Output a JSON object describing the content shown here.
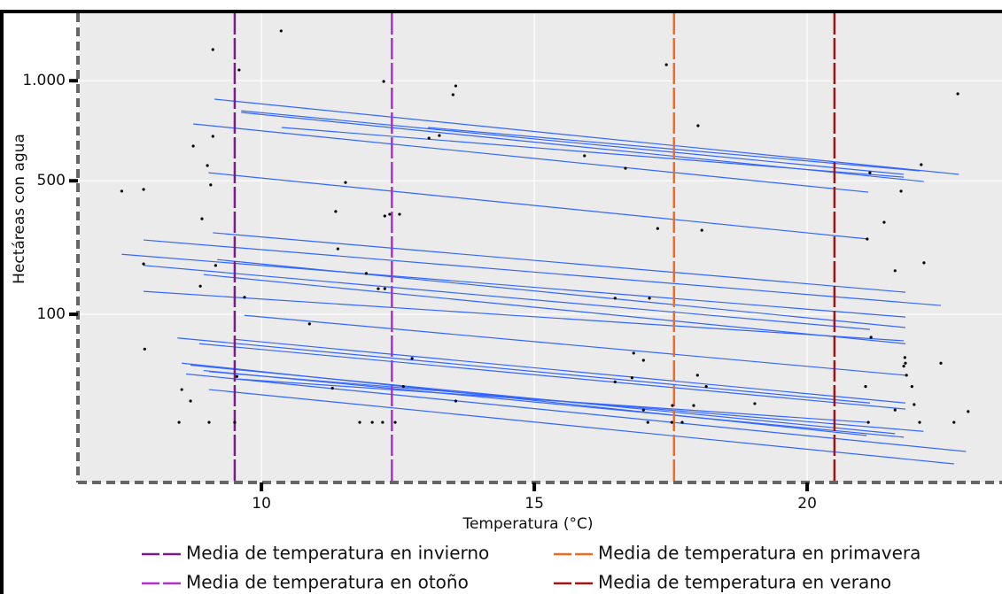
{
  "chart_data": {
    "type": "scatter",
    "xlabel": "Temperatura (°C)",
    "ylabel": "Hectáreas con agua",
    "yscale": "sqrt",
    "grid": true,
    "legend": "bottom",
    "xlim": [
      6.67,
      23.57
    ],
    "xticks": [
      10,
      15,
      20
    ],
    "ylim": [
      -31,
      1434
    ],
    "yticks": [
      100,
      500,
      {
        "value": 1000,
        "label": "1.000"
      }
    ],
    "points": {
      "color": "#000000",
      "x": [
        7.44,
        7.84,
        7.84,
        7.86,
        8.49,
        8.54,
        8.7,
        8.75,
        8.88,
        8.91,
        9.01,
        9.04,
        9.07,
        9.11,
        9.11,
        9.16,
        9.51,
        9.55,
        9.59,
        9.69,
        10.36,
        10.88,
        11.3,
        11.36,
        11.4,
        11.54,
        11.8,
        11.92,
        12.03,
        12.14,
        12.22,
        12.24,
        12.26,
        12.26,
        12.35,
        12.45,
        12.53,
        12.6,
        12.76,
        13.07,
        13.26,
        13.51,
        13.56,
        13.56,
        15.92,
        16.48,
        16.48,
        16.67,
        16.79,
        16.82,
        17.0,
        17.0,
        17.08,
        17.11,
        17.26,
        17.42,
        17.52,
        17.53,
        17.71,
        17.92,
        17.99,
        18.0,
        18.07,
        18.15,
        19.04,
        21.07,
        21.1,
        21.12,
        21.15,
        21.17,
        21.41,
        21.61,
        21.61,
        21.72,
        21.77,
        21.79,
        21.8,
        21.82,
        21.92,
        21.96,
        22.06,
        22.09,
        22.14,
        22.45,
        22.69,
        22.76,
        22.95
      ],
      "values": [
        458,
        465,
        215,
        46,
        0,
        9.2,
        3.9,
        654,
        159,
        355,
        565,
        0,
        483,
        1191,
        701,
        211,
        0,
        18,
        1064,
        134,
        1313,
        83,
        10,
        381,
        258,
        493,
        0,
        190,
        0,
        153,
        0,
        996,
        153,
        365,
        371,
        0,
        371,
        11,
        35,
        692,
        705,
        920,
        970,
        3.9,
        609,
        132,
        14,
        553,
        17,
        41,
        33,
        1.3,
        0,
        132,
        322,
        1096,
        0,
        2.4,
        0,
        2.4,
        19,
        754,
        316,
        11,
        3.0,
        11,
        288,
        0,
        534,
        62,
        343,
        197,
        1.3,
        458,
        27,
        36,
        30,
        19,
        11,
        2.7,
        0,
        569,
        218,
        30,
        0,
        925,
        1.0
      ]
    },
    "fits": [
      {
        "x": [
          9.14,
          22.78
        ],
        "values": [
          895,
          527
        ]
      },
      {
        "x": [
          9.63,
          21.77
        ],
        "values": [
          832,
          527
        ]
      },
      {
        "x": [
          9.63,
          22.14
        ],
        "values": [
          823,
          497
        ]
      },
      {
        "x": [
          8.75,
          21.12
        ],
        "values": [
          763,
          454
        ]
      },
      {
        "x": [
          10.37,
          21.77
        ],
        "values": [
          745,
          515
        ]
      },
      {
        "x": [
          13.05,
          22.06
        ],
        "values": [
          745,
          542
        ]
      },
      {
        "x": [
          9.03,
          21.12
        ],
        "values": [
          534,
          288
        ]
      },
      {
        "x": [
          9.11,
          21.8
        ],
        "values": [
          308,
          145
        ]
      },
      {
        "x": [
          7.84,
          22.45
        ],
        "values": [
          285,
          117
        ]
      },
      {
        "x": [
          7.44,
          21.8
        ],
        "values": [
          242,
          95
        ]
      },
      {
        "x": [
          7.84,
          21.15
        ],
        "values": [
          211,
          74
        ]
      },
      {
        "x": [
          9.19,
          21.8
        ],
        "values": [
          227,
          77
        ]
      },
      {
        "x": [
          8.94,
          21.8
        ],
        "values": [
          187,
          53
        ]
      },
      {
        "x": [
          7.84,
          21.77
        ],
        "values": [
          147,
          57
        ]
      },
      {
        "x": [
          9.69,
          21.8
        ],
        "values": [
          98,
          19
        ]
      },
      {
        "x": [
          8.46,
          21.15
        ],
        "values": [
          61,
          3.2
        ]
      },
      {
        "x": [
          8.86,
          21.8
        ],
        "values": [
          53,
          1.5
        ]
      },
      {
        "x": [
          9.51,
          21.8
        ],
        "values": [
          59,
          3.2
        ]
      },
      {
        "x": [
          8.54,
          21.09
        ],
        "values": [
          30,
          -1.5
        ]
      },
      {
        "x": [
          8.7,
          21.61
        ],
        "values": [
          28,
          -1.1
        ]
      },
      {
        "x": [
          8.94,
          21.77
        ],
        "values": [
          23,
          -1.9
        ]
      },
      {
        "x": [
          9.04,
          22.13
        ],
        "values": [
          22,
          -0.7
        ]
      },
      {
        "x": [
          8.62,
          22.91
        ],
        "values": [
          20,
          -7.3
        ]
      },
      {
        "x": [
          9.04,
          22.69
        ],
        "values": [
          9.2,
          -14.8
        ]
      },
      {
        "x": [
          9.59,
          21.09
        ],
        "values": [
          16,
          0
        ]
      }
    ],
    "fit_color": "#3366ff",
    "vlines": [
      {
        "name": "Media de temperatura en invierno",
        "color": "#7b1a8c",
        "x": 9.51
      },
      {
        "name": "Media de temperatura en primavera",
        "color": "#f26b1d",
        "x": 17.56
      },
      {
        "name": "Media de temperatura en otoño",
        "color": "#b02ecc",
        "x": 12.39
      },
      {
        "name": "Media de temperatura en verano",
        "color": "#9e1414",
        "x": 20.5
      }
    ]
  }
}
